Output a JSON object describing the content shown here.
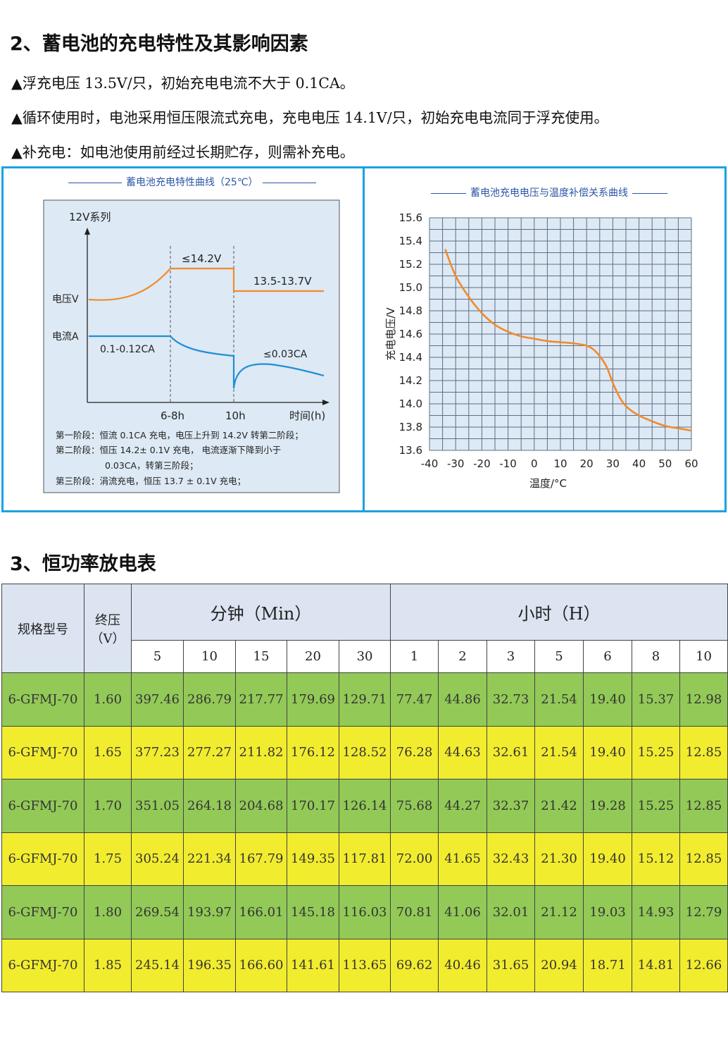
{
  "section2": {
    "title": "2、蓄电池的充电特性及其影响因素",
    "bullets": [
      "▲浮充电压 13.5V/只，初始充电电流不大于 0.1CA。",
      "▲循环使用时，电池采用恒压限流式充电，充电电压 14.1V/只，初始充电电流同于浮充使用。",
      "▲补充电：如电池使用前经过长期贮存，则需补充电。"
    ]
  },
  "left_chart": {
    "title": "蓄电池充电特性曲线（25℃）",
    "series_label": "12V系列",
    "y_voltage": "电压V",
    "y_current": "电流A",
    "label_max_voltage": "≤14.2V",
    "label_float_voltage": "13.5-13.7V",
    "label_init_current": "0.1-0.12CA",
    "label_end_current": "≤0.03CA",
    "x_tick_1": "6-8h",
    "x_tick_2": "10h",
    "x_label": "时间(h)",
    "notes": [
      "第一阶段：恒流 0.1CA 充电，电压上升到 14.2V 转第二阶段；",
      "第二阶段：恒压 14.2± 0.1V 充电，    电流逐渐下降到小于",
      "0.03CA，转第三阶段；",
      "第三阶段：涓流充电，恒压 13.7 ± 0.1V 充电；"
    ],
    "colors": {
      "voltage": "#f08a2c",
      "current": "#1e8fd6"
    }
  },
  "chart_data": {
    "type": "line",
    "title": "蓄电池充电电压与温度补偿关系曲线",
    "xlabel": "温度/°C",
    "ylabel": "充电电压/V",
    "xlim": [
      -40,
      60
    ],
    "ylim": [
      13.6,
      15.6
    ],
    "x_ticks": [
      "-40",
      "-30",
      "-20",
      "-10",
      "0",
      "10",
      "20",
      "30",
      "40",
      "50",
      "60"
    ],
    "y_ticks": [
      "15.6",
      "15.4",
      "15.2",
      "15.0",
      "14.8",
      "14.6",
      "14.4",
      "14.2",
      "14.0",
      "13.8",
      "13.6"
    ],
    "grid": true,
    "color": "#f08a2c",
    "x": [
      -34,
      -30,
      -25,
      -20,
      -15,
      -10,
      -5,
      0,
      5,
      10,
      15,
      20,
      23,
      26,
      28,
      30,
      33,
      36,
      40,
      45,
      50,
      55,
      60
    ],
    "y": [
      15.33,
      15.1,
      14.92,
      14.78,
      14.68,
      14.62,
      14.58,
      14.56,
      14.54,
      14.53,
      14.52,
      14.5,
      14.46,
      14.38,
      14.3,
      14.18,
      14.04,
      13.96,
      13.9,
      13.85,
      13.81,
      13.79,
      13.77
    ]
  },
  "section3": {
    "title": "3、恒功率放电表",
    "table": {
      "col_model": "规格型号",
      "col_voltage": "终压（V）",
      "group_min": "分钟（Min）",
      "group_hour": "小时（H）",
      "min_cols": [
        "5",
        "10",
        "15",
        "20",
        "30"
      ],
      "hour_cols": [
        "1",
        "2",
        "3",
        "5",
        "6",
        "8",
        "10"
      ],
      "rows": [
        {
          "model": "6-GFMJ-70",
          "v": "1.60",
          "vals": [
            "397.46",
            "286.79",
            "217.77",
            "179.69",
            "129.71",
            "77.47",
            "44.86",
            "32.73",
            "21.54",
            "19.40",
            "15.37",
            "12.98"
          ]
        },
        {
          "model": "6-GFMJ-70",
          "v": "1.65",
          "vals": [
            "377.23",
            "277.27",
            "211.82",
            "176.12",
            "128.52",
            "76.28",
            "44.63",
            "32.61",
            "21.54",
            "19.40",
            "15.25",
            "12.85"
          ]
        },
        {
          "model": "6-GFMJ-70",
          "v": "1.70",
          "vals": [
            "351.05",
            "264.18",
            "204.68",
            "170.17",
            "126.14",
            "75.68",
            "44.27",
            "32.37",
            "21.42",
            "19.28",
            "15.25",
            "12.85"
          ]
        },
        {
          "model": "6-GFMJ-70",
          "v": "1.75",
          "vals": [
            "305.24",
            "221.34",
            "167.79",
            "149.35",
            "117.81",
            "72.00",
            "41.65",
            "32.43",
            "21.30",
            "19.40",
            "15.12",
            "12.85"
          ]
        },
        {
          "model": "6-GFMJ-70",
          "v": "1.80",
          "vals": [
            "269.54",
            "193.97",
            "166.01",
            "145.18",
            "116.03",
            "70.81",
            "41.06",
            "32.01",
            "21.12",
            "19.03",
            "14.93",
            "12.79"
          ]
        },
        {
          "model": "6-GFMJ-70",
          "v": "1.85",
          "vals": [
            "245.14",
            "196.35",
            "166.60",
            "141.61",
            "113.65",
            "69.62",
            "40.46",
            "31.65",
            "20.94",
            "18.71",
            "14.81",
            "12.66"
          ]
        }
      ]
    }
  }
}
